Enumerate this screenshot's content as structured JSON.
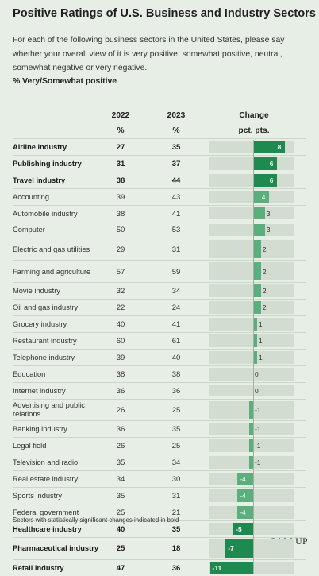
{
  "title": "Positive Ratings of U.S. Business and Industry Sectors",
  "subtitle": "For each of the following business sectors in the United States, please say whether your overall view of it is very positive, somewhat positive, neutral, somewhat negative or very negative.",
  "measure_label": "% Very/Somewhat positive",
  "headers": {
    "col2022": [
      "2022",
      "%"
    ],
    "col2023": [
      "2023",
      "%"
    ],
    "change": [
      "Change",
      "pct. pts."
    ]
  },
  "footnote": "Sectors with statistically significant changes indicated in bold",
  "logo": "GALLUP",
  "colors": {
    "background": "#e6eee5",
    "significant_bar": "#1f8a4f",
    "nonsignificant_bar": "#5cae7d",
    "track": "#d2dcd1"
  },
  "chart_data": {
    "type": "bar",
    "title": "Positive Ratings of U.S. Business and Industry Sectors",
    "categories": [
      "Airline industry",
      "Publishing industry",
      "Travel industry",
      "Accounting",
      "Automobile industry",
      "Computer",
      "Electric and gas utilities",
      "Farming and agriculture",
      "Movie industry",
      "Oil and gas industry",
      "Grocery industry",
      "Restaurant industry",
      "Telephone industry",
      "Education",
      "Internet industry",
      "Advertising and public relations",
      "Banking industry",
      "Legal field",
      "Television and radio",
      "Real estate industry",
      "Sports industry",
      "Federal government",
      "Healthcare industry",
      "Pharmaceutical industry",
      "Retail industry"
    ],
    "series": [
      {
        "name": "2022",
        "values": [
          27,
          31,
          38,
          39,
          38,
          50,
          29,
          57,
          32,
          22,
          40,
          60,
          39,
          38,
          36,
          26,
          36,
          26,
          35,
          34,
          35,
          25,
          40,
          25,
          47
        ]
      },
      {
        "name": "2023",
        "values": [
          35,
          37,
          44,
          43,
          41,
          53,
          31,
          59,
          34,
          24,
          41,
          61,
          40,
          38,
          36,
          25,
          35,
          25,
          34,
          30,
          31,
          21,
          35,
          18,
          36
        ]
      },
      {
        "name": "Change",
        "values": [
          8,
          6,
          6,
          4,
          3,
          3,
          2,
          2,
          2,
          2,
          1,
          1,
          1,
          0,
          0,
          -1,
          -1,
          -1,
          -1,
          -4,
          -4,
          -4,
          -5,
          -7,
          -11
        ]
      }
    ],
    "significant": [
      true,
      true,
      true,
      false,
      false,
      false,
      false,
      false,
      false,
      false,
      false,
      false,
      false,
      false,
      false,
      false,
      false,
      false,
      false,
      false,
      false,
      false,
      true,
      true,
      true
    ],
    "xlim": [
      -11,
      8
    ]
  }
}
